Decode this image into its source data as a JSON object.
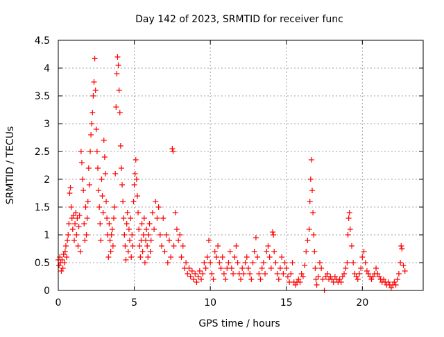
{
  "chart_data": {
    "type": "scatter",
    "title": "Day 142 of 2023, SRMTID for receiver func",
    "xlabel": "GPS time / hours",
    "ylabel": "SRMTID / TECUs",
    "xlim": [
      0,
      24
    ],
    "ylim": [
      0,
      4.5
    ],
    "x_ticks": [
      0,
      5,
      10,
      15,
      20
    ],
    "x_tick_labels": [
      "0",
      "5",
      "10",
      "15",
      "20"
    ],
    "y_ticks": [
      0,
      0.5,
      1,
      1.5,
      2,
      2.5,
      3,
      3.5,
      4,
      4.5
    ],
    "y_tick_labels": [
      "0",
      "0.5",
      "1",
      "1.5",
      "2",
      "2.5",
      "3",
      "3.5",
      "4",
      "4.5"
    ],
    "grid": true,
    "marker": "+",
    "color": "#ff0000",
    "series": [
      {
        "name": "SRMTID",
        "points": [
          [
            0.0,
            0.55
          ],
          [
            0.05,
            0.45
          ],
          [
            0.1,
            0.6
          ],
          [
            0.15,
            0.5
          ],
          [
            0.2,
            0.35
          ],
          [
            0.25,
            0.55
          ],
          [
            0.3,
            0.4
          ],
          [
            0.35,
            0.65
          ],
          [
            0.4,
            0.5
          ],
          [
            0.45,
            0.7
          ],
          [
            0.5,
            0.8
          ],
          [
            0.55,
            0.6
          ],
          [
            0.6,
            0.9
          ],
          [
            0.65,
            1.0
          ],
          [
            0.7,
            1.2
          ],
          [
            0.75,
            1.75
          ],
          [
            0.8,
            1.85
          ],
          [
            0.85,
            1.5
          ],
          [
            0.9,
            1.3
          ],
          [
            0.95,
            1.1
          ],
          [
            1.0,
            1.35
          ],
          [
            1.05,
            0.9
          ],
          [
            1.1,
            1.2
          ],
          [
            1.15,
            1.4
          ],
          [
            1.2,
            1.0
          ],
          [
            1.25,
            1.3
          ],
          [
            1.3,
            0.8
          ],
          [
            1.35,
            1.15
          ],
          [
            1.4,
            1.35
          ],
          [
            1.45,
            0.7
          ],
          [
            1.5,
            2.5
          ],
          [
            1.55,
            2.3
          ],
          [
            1.6,
            2.0
          ],
          [
            1.65,
            1.8
          ],
          [
            1.7,
            1.2
          ],
          [
            1.75,
            0.9
          ],
          [
            1.8,
            1.5
          ],
          [
            1.85,
            1.0
          ],
          [
            1.9,
            1.3
          ],
          [
            1.95,
            1.6
          ],
          [
            2.0,
            2.2
          ],
          [
            2.05,
            1.9
          ],
          [
            2.1,
            2.5
          ],
          [
            2.15,
            2.8
          ],
          [
            2.2,
            3.0
          ],
          [
            2.25,
            3.2
          ],
          [
            2.3,
            3.5
          ],
          [
            2.35,
            3.75
          ],
          [
            2.4,
            4.17
          ],
          [
            2.45,
            3.6
          ],
          [
            2.5,
            2.9
          ],
          [
            2.55,
            2.5
          ],
          [
            2.6,
            2.2
          ],
          [
            2.65,
            1.8
          ],
          [
            2.7,
            1.5
          ],
          [
            2.75,
            1.2
          ],
          [
            2.8,
            0.9
          ],
          [
            2.85,
            2.0
          ],
          [
            2.9,
            1.7
          ],
          [
            2.95,
            1.4
          ],
          [
            3.0,
            2.7
          ],
          [
            3.05,
            2.4
          ],
          [
            3.1,
            2.1
          ],
          [
            3.15,
            1.6
          ],
          [
            3.2,
            1.3
          ],
          [
            3.25,
            1.0
          ],
          [
            3.3,
            0.6
          ],
          [
            3.35,
            1.2
          ],
          [
            3.4,
            0.9
          ],
          [
            3.45,
            0.7
          ],
          [
            3.5,
            1.0
          ],
          [
            3.55,
            1.1
          ],
          [
            3.6,
            0.8
          ],
          [
            3.65,
            1.3
          ],
          [
            3.7,
            1.5
          ],
          [
            3.75,
            2.1
          ],
          [
            3.8,
            3.3
          ],
          [
            3.85,
            3.9
          ],
          [
            3.9,
            4.2
          ],
          [
            3.95,
            4.05
          ],
          [
            4.0,
            3.6
          ],
          [
            4.05,
            3.2
          ],
          [
            4.1,
            2.6
          ],
          [
            4.15,
            2.2
          ],
          [
            4.2,
            1.9
          ],
          [
            4.25,
            1.6
          ],
          [
            4.3,
            1.3
          ],
          [
            4.35,
            1.0
          ],
          [
            4.4,
            0.8
          ],
          [
            4.45,
            0.55
          ],
          [
            4.5,
            1.2
          ],
          [
            4.55,
            1.4
          ],
          [
            4.6,
            0.7
          ],
          [
            4.65,
            1.1
          ],
          [
            4.7,
            0.9
          ],
          [
            4.75,
            1.3
          ],
          [
            4.8,
            0.6
          ],
          [
            4.85,
            1.0
          ],
          [
            4.9,
            0.8
          ],
          [
            4.95,
            1.6
          ],
          [
            5.0,
            1.9
          ],
          [
            5.05,
            2.1
          ],
          [
            5.1,
            2.35
          ],
          [
            5.15,
            2.0
          ],
          [
            5.2,
            1.7
          ],
          [
            5.25,
            1.4
          ],
          [
            5.3,
            1.1
          ],
          [
            5.35,
            0.8
          ],
          [
            5.4,
            0.6
          ],
          [
            5.45,
            0.9
          ],
          [
            5.5,
            1.2
          ],
          [
            5.55,
            0.7
          ],
          [
            5.6,
            1.0
          ],
          [
            5.65,
            1.3
          ],
          [
            5.7,
            0.5
          ],
          [
            5.75,
            0.9
          ],
          [
            5.8,
            1.1
          ],
          [
            5.85,
            0.8
          ],
          [
            5.9,
            0.6
          ],
          [
            5.95,
            1.0
          ],
          [
            6.0,
            1.2
          ],
          [
            6.05,
            0.7
          ],
          [
            6.1,
            0.9
          ],
          [
            6.2,
            1.4
          ],
          [
            6.3,
            1.1
          ],
          [
            6.4,
            1.6
          ],
          [
            6.5,
            1.3
          ],
          [
            6.6,
            1.5
          ],
          [
            6.7,
            1.0
          ],
          [
            6.8,
            0.8
          ],
          [
            6.9,
            1.3
          ],
          [
            7.0,
            0.7
          ],
          [
            7.1,
            1.0
          ],
          [
            7.2,
            0.5
          ],
          [
            7.3,
            0.9
          ],
          [
            7.4,
            0.6
          ],
          [
            7.5,
            2.55
          ],
          [
            7.55,
            2.5
          ],
          [
            7.6,
            0.8
          ],
          [
            7.7,
            1.4
          ],
          [
            7.8,
            1.1
          ],
          [
            7.9,
            0.9
          ],
          [
            8.0,
            1.0
          ],
          [
            8.1,
            0.6
          ],
          [
            8.2,
            0.8
          ],
          [
            8.3,
            0.4
          ],
          [
            8.4,
            0.5
          ],
          [
            8.5,
            0.3
          ],
          [
            8.6,
            0.4
          ],
          [
            8.7,
            0.25
          ],
          [
            8.8,
            0.35
          ],
          [
            8.9,
            0.2
          ],
          [
            9.0,
            0.3
          ],
          [
            9.1,
            0.15
          ],
          [
            9.2,
            0.25
          ],
          [
            9.3,
            0.35
          ],
          [
            9.4,
            0.2
          ],
          [
            9.5,
            0.3
          ],
          [
            9.6,
            0.5
          ],
          [
            9.7,
            0.4
          ],
          [
            9.8,
            0.6
          ],
          [
            9.9,
            0.9
          ],
          [
            10.0,
            0.5
          ],
          [
            10.1,
            0.3
          ],
          [
            10.2,
            0.2
          ],
          [
            10.3,
            0.7
          ],
          [
            10.4,
            0.6
          ],
          [
            10.5,
            0.8
          ],
          [
            10.6,
            0.5
          ],
          [
            10.7,
            0.4
          ],
          [
            10.8,
            0.6
          ],
          [
            10.9,
            0.3
          ],
          [
            11.0,
            0.2
          ],
          [
            11.1,
            0.4
          ],
          [
            11.2,
            0.5
          ],
          [
            11.3,
            0.7
          ],
          [
            11.4,
            0.4
          ],
          [
            11.5,
            0.3
          ],
          [
            11.6,
            0.6
          ],
          [
            11.7,
            0.8
          ],
          [
            11.8,
            0.5
          ],
          [
            11.9,
            0.3
          ],
          [
            12.0,
            0.2
          ],
          [
            12.1,
            0.4
          ],
          [
            12.2,
            0.3
          ],
          [
            12.3,
            0.5
          ],
          [
            12.4,
            0.6
          ],
          [
            12.5,
            0.4
          ],
          [
            12.6,
            0.3
          ],
          [
            12.7,
            0.2
          ],
          [
            12.8,
            0.5
          ],
          [
            12.9,
            0.7
          ],
          [
            13.0,
            0.95
          ],
          [
            13.1,
            0.6
          ],
          [
            13.2,
            0.3
          ],
          [
            13.3,
            0.2
          ],
          [
            13.4,
            0.4
          ],
          [
            13.5,
            0.5
          ],
          [
            13.6,
            0.3
          ],
          [
            13.7,
            0.7
          ],
          [
            13.8,
            0.8
          ],
          [
            13.9,
            0.6
          ],
          [
            14.0,
            0.4
          ],
          [
            14.1,
            1.05
          ],
          [
            14.15,
            1.0
          ],
          [
            14.2,
            0.7
          ],
          [
            14.3,
            0.5
          ],
          [
            14.4,
            0.3
          ],
          [
            14.5,
            0.2
          ],
          [
            14.6,
            0.4
          ],
          [
            14.7,
            0.6
          ],
          [
            14.8,
            0.3
          ],
          [
            14.9,
            0.5
          ],
          [
            15.0,
            0.4
          ],
          [
            15.1,
            0.25
          ],
          [
            15.2,
            0.15
          ],
          [
            15.3,
            0.3
          ],
          [
            15.4,
            0.5
          ],
          [
            15.5,
            0.15
          ],
          [
            15.6,
            0.1
          ],
          [
            15.7,
            0.15
          ],
          [
            15.8,
            0.2
          ],
          [
            15.9,
            0.15
          ],
          [
            16.0,
            0.3
          ],
          [
            16.1,
            0.25
          ],
          [
            16.2,
            0.45
          ],
          [
            16.3,
            0.7
          ],
          [
            16.4,
            0.9
          ],
          [
            16.5,
            1.1
          ],
          [
            16.55,
            1.6
          ],
          [
            16.6,
            2.0
          ],
          [
            16.65,
            2.35
          ],
          [
            16.7,
            1.8
          ],
          [
            16.75,
            1.4
          ],
          [
            16.8,
            1.0
          ],
          [
            16.85,
            0.7
          ],
          [
            16.9,
            0.4
          ],
          [
            16.95,
            0.2
          ],
          [
            17.0,
            0.1
          ],
          [
            17.1,
            0.25
          ],
          [
            17.2,
            0.5
          ],
          [
            17.3,
            0.4
          ],
          [
            17.4,
            0.2
          ],
          [
            17.5,
            0.0
          ],
          [
            17.6,
            0.25
          ],
          [
            17.7,
            0.3
          ],
          [
            17.8,
            0.2
          ],
          [
            17.9,
            0.25
          ],
          [
            18.0,
            0.2
          ],
          [
            18.1,
            0.15
          ],
          [
            18.2,
            0.25
          ],
          [
            18.3,
            0.2
          ],
          [
            18.4,
            0.15
          ],
          [
            18.5,
            0.2
          ],
          [
            18.6,
            0.15
          ],
          [
            18.7,
            0.25
          ],
          [
            18.8,
            0.3
          ],
          [
            18.9,
            0.4
          ],
          [
            19.0,
            0.5
          ],
          [
            19.05,
            1.0
          ],
          [
            19.1,
            1.3
          ],
          [
            19.15,
            1.4
          ],
          [
            19.2,
            1.1
          ],
          [
            19.3,
            0.8
          ],
          [
            19.4,
            0.5
          ],
          [
            19.5,
            0.3
          ],
          [
            19.6,
            0.25
          ],
          [
            19.7,
            0.2
          ],
          [
            19.8,
            0.3
          ],
          [
            19.9,
            0.4
          ],
          [
            20.0,
            0.6
          ],
          [
            20.1,
            0.7
          ],
          [
            20.2,
            0.5
          ],
          [
            20.3,
            0.35
          ],
          [
            20.4,
            0.3
          ],
          [
            20.5,
            0.25
          ],
          [
            20.6,
            0.2
          ],
          [
            20.7,
            0.25
          ],
          [
            20.8,
            0.3
          ],
          [
            20.9,
            0.4
          ],
          [
            21.0,
            0.3
          ],
          [
            21.1,
            0.25
          ],
          [
            21.2,
            0.2
          ],
          [
            21.3,
            0.15
          ],
          [
            21.4,
            0.2
          ],
          [
            21.5,
            0.15
          ],
          [
            21.6,
            0.1
          ],
          [
            21.7,
            0.15
          ],
          [
            21.8,
            0.1
          ],
          [
            21.9,
            0.05
          ],
          [
            22.0,
            0.1
          ],
          [
            22.1,
            0.15
          ],
          [
            22.2,
            0.1
          ],
          [
            22.3,
            0.2
          ],
          [
            22.4,
            0.3
          ],
          [
            22.5,
            0.5
          ],
          [
            22.55,
            0.8
          ],
          [
            22.6,
            0.75
          ],
          [
            22.7,
            0.45
          ],
          [
            22.8,
            0.35
          ]
        ]
      }
    ]
  }
}
